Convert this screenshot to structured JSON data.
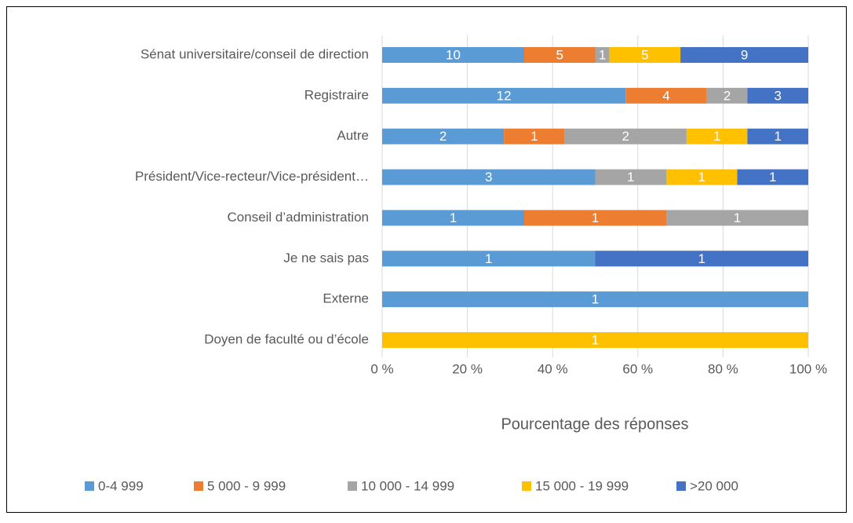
{
  "chart_data": {
    "type": "bar",
    "orientation": "horizontal",
    "stacking": "percent",
    "x_label": "Pourcentage des réponses",
    "categories": [
      "Sénat universitaire/conseil de direction",
      "Registraire",
      "Autre",
      "Président/Vice-recteur/Vice-président…",
      "Conseil d’administration",
      "Je ne sais pas",
      "Externe",
      "Doyen de faculté ou d’école"
    ],
    "series": [
      {
        "name": "0-4 999",
        "color": "#5b9bd5",
        "values": [
          10,
          12,
          2,
          3,
          1,
          1,
          1,
          null
        ]
      },
      {
        "name": "5 000 - 9 999",
        "color": "#ed7d31",
        "values": [
          5,
          4,
          1,
          null,
          1,
          null,
          null,
          null
        ]
      },
      {
        "name": "10 000 - 14 999",
        "color": "#a5a5a5",
        "values": [
          1,
          2,
          2,
          1,
          1,
          null,
          null,
          null
        ]
      },
      {
        "name": "15 000 - 19 999",
        "color": "#ffc000",
        "values": [
          5,
          null,
          1,
          1,
          null,
          null,
          null,
          1
        ]
      },
      {
        "name": ">20 000",
        "color": "#4472c4",
        "values": [
          9,
          3,
          1,
          1,
          null,
          1,
          null,
          null
        ]
      }
    ],
    "xlim": [
      0,
      100
    ],
    "xticks": [
      {
        "value": 0,
        "label": "0 %"
      },
      {
        "value": 20,
        "label": "20 %"
      },
      {
        "value": 40,
        "label": "40 %"
      },
      {
        "value": 60,
        "label": "60 %"
      },
      {
        "value": 80,
        "label": "80 %"
      },
      {
        "value": 100,
        "label": "100 %"
      }
    ],
    "grid": true,
    "legend": "bottom"
  }
}
